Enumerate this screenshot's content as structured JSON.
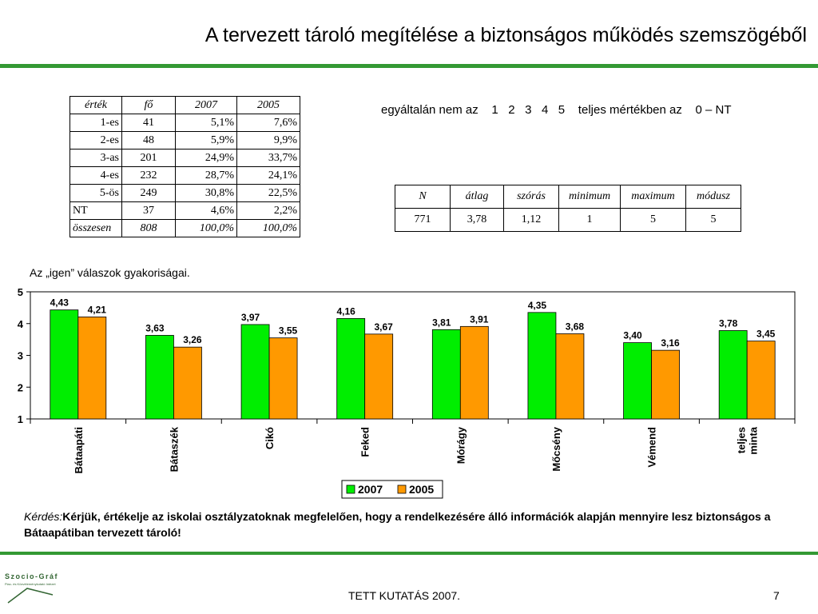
{
  "title": "A tervezett tároló megítélése a biztonságos működés szemszögéből",
  "freq_table": {
    "headers": [
      "érték",
      "fő",
      "2007",
      "2005"
    ],
    "rows": [
      [
        "1-es",
        "41",
        "5,1%",
        "7,6%"
      ],
      [
        "2-es",
        "48",
        "5,9%",
        "9,9%"
      ],
      [
        "3-as",
        "201",
        "24,9%",
        "33,7%"
      ],
      [
        "4-es",
        "232",
        "28,7%",
        "24,1%"
      ],
      [
        "5-ös",
        "249",
        "30,8%",
        "22,5%"
      ],
      [
        "NT",
        "37",
        "4,6%",
        "2,2%"
      ]
    ],
    "total": [
      "összesen",
      "808",
      "100,0%",
      "100,0%"
    ]
  },
  "scale_text": "egyáltalán nem az    1   2   3   4   5    teljes mértékben az    0 – NT",
  "stats_table": {
    "headers": [
      "N",
      "átlag",
      "szórás",
      "minimum",
      "maximum",
      "módusz"
    ],
    "values": [
      "771",
      "3,78",
      "1,12",
      "1",
      "5",
      "5"
    ]
  },
  "chart_caption": "Az „igen” válaszok gyakoriságai.",
  "chart_data": {
    "type": "bar",
    "categories": [
      "Bátaapáti",
      "Bátaszék",
      "Cikó",
      "Feked",
      "Mórágy",
      "Mőcsény",
      "Vémend",
      "teljes minta"
    ],
    "series": [
      {
        "name": "2007",
        "color": "#00ee00",
        "values": [
          4.43,
          3.63,
          3.97,
          4.16,
          3.81,
          4.35,
          3.4,
          3.78
        ],
        "labels": [
          "4,43",
          "3,63",
          "3,97",
          "4,16",
          "3,81",
          "4,35",
          "3,40",
          "3,78"
        ]
      },
      {
        "name": "2005",
        "color": "#ff9900",
        "values": [
          4.21,
          3.26,
          3.55,
          3.67,
          3.91,
          3.68,
          3.16,
          3.45
        ],
        "labels": [
          "4,21",
          "3,26",
          "3,55",
          "3,67",
          "3,91",
          "3,68",
          "3,16",
          "3,45"
        ]
      }
    ],
    "yticks": [
      "1",
      "2",
      "3",
      "4",
      "5"
    ],
    "ylim": [
      1,
      5
    ],
    "grid": false,
    "legend": "bottom-center",
    "title": "",
    "xlabel": "",
    "ylabel": ""
  },
  "question": {
    "label": "Kérdés:",
    "text": "Kérjük, értékelje az iskolai osztályzatoknak megfelelően, hogy a rendelkezésére álló információk alapján mennyire lesz biztonságos a Bátaapátiban tervezett tároló!"
  },
  "footer": {
    "center": "TETT KUTATÁS 2007.",
    "page": "7"
  },
  "logo": {
    "text": "Szocio-Gráf",
    "subtext": "Piac- és Közvéleménykutató Intézet"
  }
}
